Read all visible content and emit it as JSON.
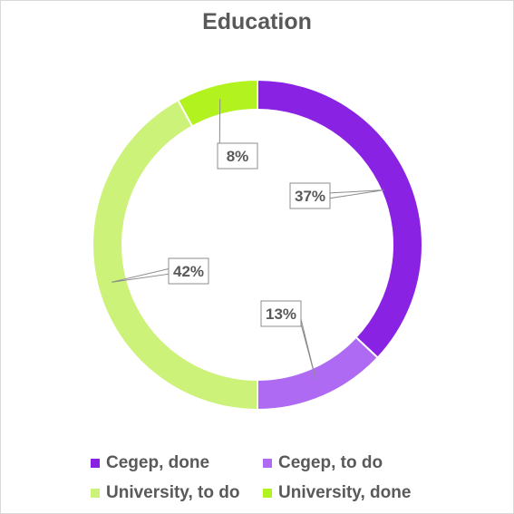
{
  "chart_data": {
    "type": "pie",
    "title": "Education",
    "categories": [
      "Cegep, done",
      "Cegep, to do",
      "University, to do",
      "University, done"
    ],
    "values": [
      37,
      13,
      42,
      8
    ],
    "labels": [
      "37%",
      "13%",
      "42%",
      "8%"
    ],
    "colors": [
      "#8a22e3",
      "#ae6af2",
      "#ccf27a",
      "#b2f21e"
    ],
    "legend": "bottom",
    "style": "donut"
  }
}
